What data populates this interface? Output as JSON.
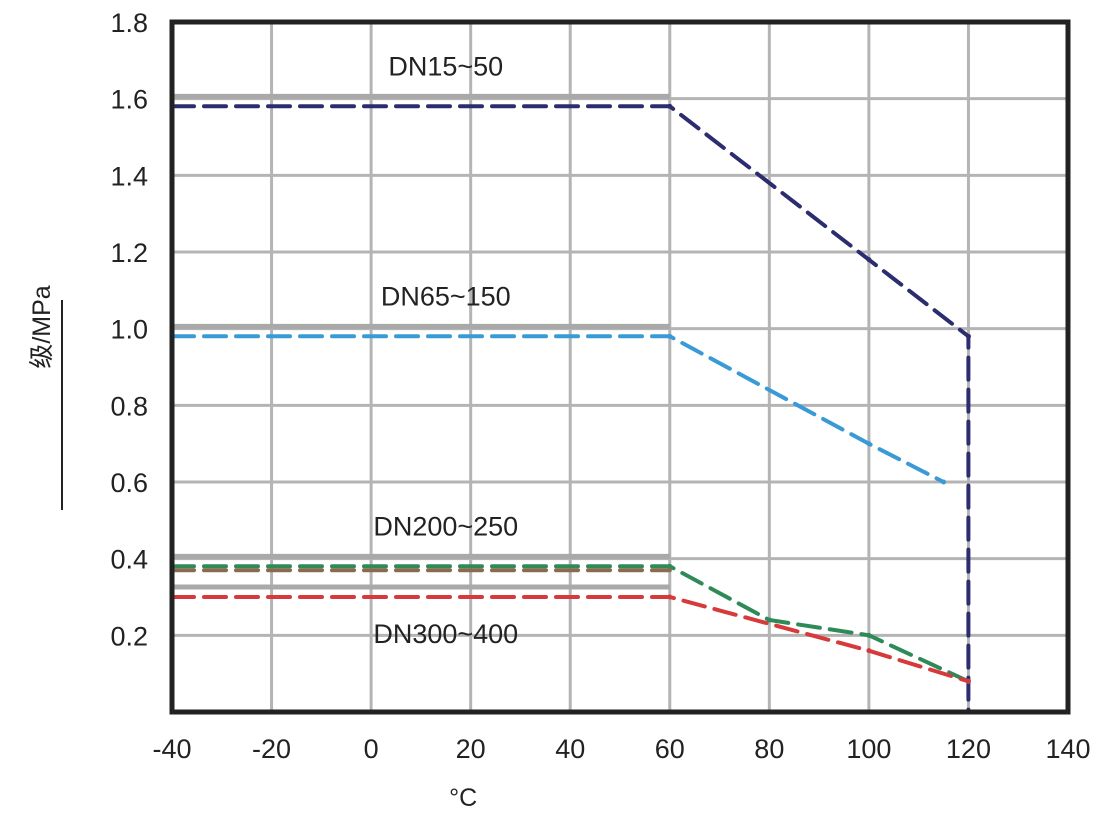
{
  "chart_data": {
    "type": "line",
    "xlabel": "°C",
    "ylabel": "级/MPa",
    "xlim": [
      -40,
      140
    ],
    "ylim": [
      0,
      1.8
    ],
    "x_ticks": [
      "-40",
      "-20",
      "0",
      "20",
      "40",
      "60",
      "80",
      "100",
      "120",
      "140"
    ],
    "y_ticks": [
      "0.2",
      "0.4",
      "0.6",
      "0.8",
      "1.0",
      "1.2",
      "1.4",
      "1.6",
      "1.8"
    ],
    "grid": true,
    "series": [
      {
        "name": "DN15~50",
        "color": "#2b2d6e",
        "points": [
          [
            -40,
            1.58
          ],
          [
            60,
            1.58
          ],
          [
            100,
            1.18
          ],
          [
            120,
            0.98
          ],
          [
            120,
            0.0
          ]
        ]
      },
      {
        "name": "DN65~150",
        "color": "#3a9ad6",
        "points": [
          [
            -40,
            0.98
          ],
          [
            60,
            0.98
          ],
          [
            100,
            0.7
          ],
          [
            115,
            0.6
          ]
        ]
      },
      {
        "name": "DN200~250",
        "color": "#2e8b57",
        "points": [
          [
            -40,
            0.38
          ],
          [
            60,
            0.38
          ],
          [
            80,
            0.24
          ],
          [
            100,
            0.2
          ],
          [
            120,
            0.08
          ]
        ]
      },
      {
        "name": "DN300~400",
        "color": "#d63a3a",
        "points": [
          [
            -40,
            0.3
          ],
          [
            60,
            0.3
          ],
          [
            100,
            0.16
          ],
          [
            120,
            0.08
          ]
        ]
      }
    ],
    "extra_series": [
      {
        "color": "#8b6a50",
        "points": [
          [
            -40,
            0.37
          ],
          [
            60,
            0.37
          ]
        ]
      }
    ]
  }
}
